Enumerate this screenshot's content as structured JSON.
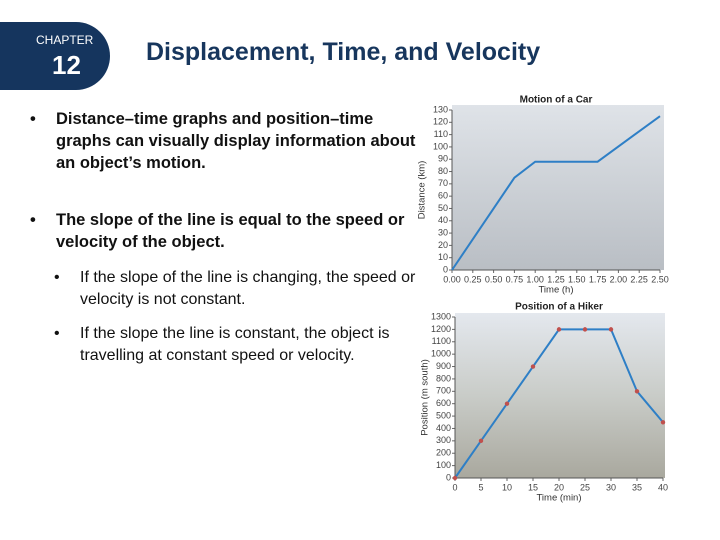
{
  "header": {
    "chapter_label": "CHAPTER",
    "chapter_number": "12",
    "title": "Displacement, Time, and Velocity"
  },
  "bullets": [
    {
      "text": "Distance–time graphs and position–time graphs can visually display information about an object’s motion."
    },
    {
      "text": "The slope of the line is equal to the speed or velocity of the object.",
      "sub": [
        "If the slope of the line is changing, the speed or velocity is not constant.",
        "If the slope the line is constant, the object is travelling at constant speed or velocity."
      ]
    }
  ],
  "chart_data": [
    {
      "type": "line",
      "title": "Motion of a Car",
      "x_label": "Time (h)",
      "y_label": "Distance (km)",
      "x": [
        0,
        0.75,
        1.0,
        1.75,
        2.5
      ],
      "values": [
        0,
        75,
        88,
        88,
        125
      ],
      "color": "#2e7fc6",
      "markers": false,
      "xlim": [
        0,
        2.5
      ],
      "ylim": [
        0,
        130
      ],
      "xticks": [
        {
          "value": 0,
          "label": "0.00"
        },
        {
          "value": 0.25,
          "label": "0.25"
        },
        {
          "value": 0.5,
          "label": "0.50"
        },
        {
          "value": 0.75,
          "label": "0.75"
        },
        {
          "value": 1,
          "label": "1.00"
        },
        {
          "value": 1.25,
          "label": "1.25"
        },
        {
          "value": 1.5,
          "label": "1.50"
        },
        {
          "value": 1.75,
          "label": "1.75"
        },
        {
          "value": 2,
          "label": "2.00"
        },
        {
          "value": 2.25,
          "label": "2.25"
        },
        {
          "value": 2.5,
          "label": "2.50"
        }
      ],
      "yticks": [
        0,
        10,
        20,
        30,
        40,
        50,
        60,
        70,
        80,
        90,
        100,
        110,
        120,
        130
      ]
    },
    {
      "type": "line",
      "title": "Position of a Hiker",
      "x_label": "Time (min)",
      "y_label": "Position (m south)",
      "x": [
        0,
        5,
        10,
        15,
        20,
        25,
        30,
        35,
        40
      ],
      "values": [
        0,
        300,
        600,
        900,
        1200,
        1200,
        1200,
        700,
        450
      ],
      "color": "#2e7fc6",
      "markers": true,
      "marker_color": "#c0504d",
      "xlim": [
        0,
        40
      ],
      "ylim": [
        0,
        1300
      ],
      "xticks": [
        0,
        5,
        10,
        15,
        20,
        25,
        30,
        35,
        40
      ],
      "yticks": [
        0,
        100,
        200,
        300,
        400,
        500,
        600,
        700,
        800,
        900,
        1000,
        1100,
        1200,
        1300
      ]
    }
  ]
}
